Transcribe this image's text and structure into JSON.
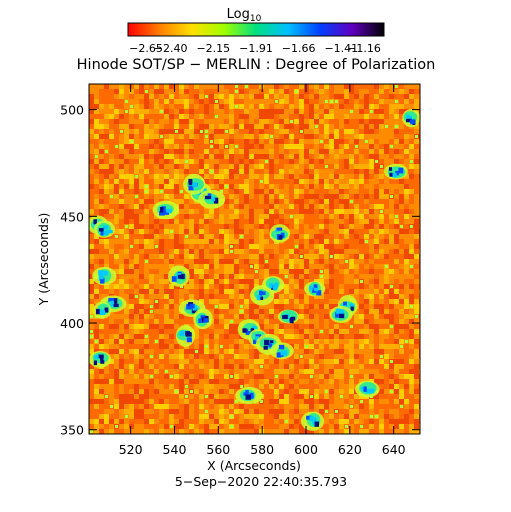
{
  "colorbar": {
    "label": "Log",
    "label_sub": "10",
    "ticks": [
      "−2.65",
      "−2.40",
      "−2.15",
      "−1.91",
      "−1.66",
      "−1.41",
      "−1.16"
    ],
    "range": [
      -2.65,
      -1.16
    ],
    "colors": [
      "#ff0000",
      "#ff8000",
      "#ffe000",
      "#a0ff00",
      "#00e080",
      "#00c0ff",
      "#0040ff",
      "#6000c0",
      "#000000"
    ]
  },
  "title": "Hinode SOT/SP − MERLIN : Degree of Polarization",
  "axes": {
    "xlabel": "X (Arcseconds)",
    "ylabel": "Y (Arcseconds)",
    "xlim": [
      501,
      652
    ],
    "ylim": [
      348,
      512
    ],
    "xticks": [
      "520",
      "540",
      "560",
      "580",
      "600",
      "620",
      "640"
    ],
    "xtick_values": [
      520,
      540,
      560,
      580,
      600,
      620,
      640
    ],
    "yticks": [
      "500",
      "450",
      "400",
      "350"
    ],
    "ytick_values": [
      500,
      450,
      400,
      350
    ]
  },
  "timestamp": "5−Sep−2020 22:40:35.793",
  "map": {
    "background_colors": [
      "#f04800",
      "#ff6a00",
      "#ff8c00",
      "#ffae00",
      "#ffd000"
    ],
    "patch_colors": [
      "#00c8ff",
      "#0050ff",
      "#001080"
    ],
    "patches_arcsec": [
      [
        552,
        461
      ],
      [
        549,
        465
      ],
      [
        557,
        458
      ],
      [
        536,
        453
      ],
      [
        505,
        446
      ],
      [
        508,
        444
      ],
      [
        508,
        422
      ],
      [
        512,
        409
      ],
      [
        507,
        406
      ],
      [
        548,
        407
      ],
      [
        553,
        402
      ],
      [
        545,
        394
      ],
      [
        574,
        397
      ],
      [
        578,
        393
      ],
      [
        583,
        390
      ],
      [
        589,
        387
      ],
      [
        580,
        413
      ],
      [
        585,
        418
      ],
      [
        604,
        416
      ],
      [
        619,
        408
      ],
      [
        616,
        404
      ],
      [
        588,
        442
      ],
      [
        506,
        383
      ],
      [
        574,
        366
      ],
      [
        603,
        354
      ],
      [
        641,
        471
      ],
      [
        648,
        496
      ],
      [
        628,
        369
      ],
      [
        542,
        422
      ],
      [
        592,
        403
      ]
    ]
  }
}
